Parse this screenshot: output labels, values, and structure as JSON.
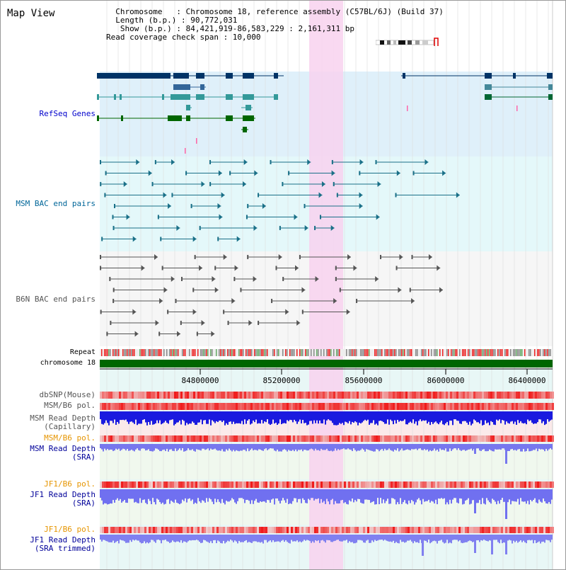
{
  "page": {
    "title": "Map View"
  },
  "header": {
    "lines": [
      "  Chromosome   : Chromosome 18, reference assembly (C57BL/6J) (Build 37)",
      "  Length (b.p.) : 90,772,031",
      "   Show (b.p.) : 84,421,919-86,583,229 : 2,161,311 bp",
      "Read coverage check span : 10,000"
    ]
  },
  "axis": {
    "ticks": [
      "84800000",
      "85200000",
      "85600000",
      "86000000",
      "86400000"
    ]
  },
  "tracks": {
    "refseq": "RefSeq Genes",
    "msm_bac": "MSM BAC end pairs",
    "b6n_bac": "B6N BAC end pairs",
    "repeat": "Repeat",
    "chromosome": "chromosome 18",
    "dbsnp": "dbSNP(Mouse)",
    "msm_pol_1": "MSM/B6 pol.",
    "msm_depth_cap_1": "MSM Read Depth",
    "msm_depth_cap_2": "(Capillary)",
    "msm_pol_2": "MSM/B6 pol.",
    "msm_depth_sra_1": "MSM Read Depth",
    "msm_depth_sra_2": "(SRA)",
    "jf1_pol_1": "JF1/B6 pol.",
    "jf1_depth_sra_1": "JF1 Read Depth",
    "jf1_depth_sra_2": "(SRA)",
    "jf1_pol_2": "JF1/B6 pol.",
    "jf1_depth_trim_1": "JF1 Read Depth",
    "jf1_depth_trim_2": "(SRA trimmed)"
  },
  "colors": {
    "refseq_label": "#0000cc",
    "msm_label": "#006699",
    "b6n_label": "#555555",
    "pol_orange": "#e69500",
    "depth_navy": "#000099"
  }
}
